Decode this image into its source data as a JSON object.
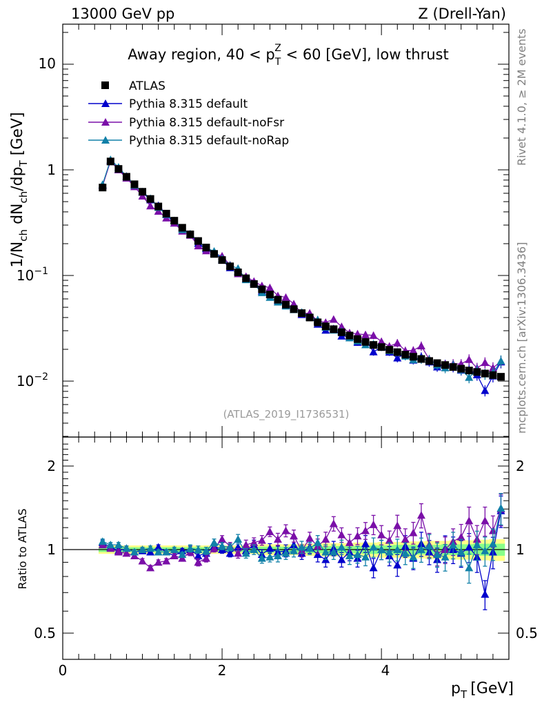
{
  "chart_data": {
    "type": "scatter",
    "header_left": "13000 GeV pp",
    "header_right": "Z (Drell-Yan)",
    "title": "Away region, 40 < p_T^Z < 60 [GeV], low thrust",
    "title_parts": {
      "prefix": "Away region, 40 < p",
      "sup": "Z",
      "sub": "T",
      "suffix": " < 60 [GeV], low thrust"
    },
    "ylabel_main": "1/N_ch dN_ch/dp_T [GeV]",
    "ylabel_ratio": "Ratio to ATLAS",
    "xlabel": "p_T [GeV]",
    "xlabel_parts": {
      "base": "p",
      "sub": "T",
      "unit": "[GeV]"
    },
    "ylabel_parts": {
      "a": "1/N",
      "a_sub": "ch",
      "b": " dN",
      "b_sub": "ch",
      "c": "/dp",
      "c_sub": "T",
      "d": " [GeV]"
    },
    "rivet_label": "Rivet 4.1.0, ≥ 2M events",
    "mcplots_label": "mcplots.cern.ch [arXiv:1306.3436]",
    "analysis_label": "(ATLAS_2019_I1736531)",
    "xlim": [
      0,
      5.6
    ],
    "ylim_main": [
      0.0025,
      25
    ],
    "ylim_ratio": [
      0.4,
      2.5
    ],
    "xticks": [
      0,
      2,
      4
    ],
    "xtick_labels": [
      "0",
      "2",
      "4"
    ],
    "yticks_main": [
      10,
      1,
      0.1,
      0.01
    ],
    "ytick_labels_main": [
      {
        "base": "10",
        "exp": ""
      },
      {
        "base": "1",
        "exp": ""
      },
      {
        "base": "10",
        "exp": "−1"
      },
      {
        "base": "10",
        "exp": "−2"
      }
    ],
    "yticks_ratio": [
      2,
      1,
      0.5
    ],
    "ytick_labels_ratio": [
      "2",
      "1",
      "0.5"
    ],
    "legend": [
      "ATLAS",
      "Pythia 8.315 default",
      "Pythia 8.315 default-noFsr",
      "Pythia 8.315 default-noRap"
    ],
    "colors": {
      "data": "#000000",
      "default": "#0000cc",
      "noFsr": "#7a0fa8",
      "noRap": "#1180a8",
      "band_inner": "#88ff88",
      "band_outer": "#ffff88"
    },
    "x": [
      0.5,
      0.6,
      0.7,
      0.8,
      0.9,
      1.0,
      1.1,
      1.2,
      1.3,
      1.4,
      1.5,
      1.6,
      1.7,
      1.8,
      1.9,
      2.0,
      2.1,
      2.2,
      2.3,
      2.4,
      2.5,
      2.6,
      2.7,
      2.8,
      2.9,
      3.0,
      3.1,
      3.2,
      3.3,
      3.4,
      3.5,
      3.6,
      3.7,
      3.8,
      3.9,
      4.0,
      4.1,
      4.2,
      4.3,
      4.4,
      4.5,
      4.6,
      4.7,
      4.8,
      4.9,
      5.0,
      5.1,
      5.2,
      5.3,
      5.4,
      5.5
    ],
    "series": [
      {
        "name": "ATLAS",
        "values": [
          0.68,
          1.2,
          1.02,
          0.86,
          0.73,
          0.62,
          0.53,
          0.45,
          0.385,
          0.33,
          0.283,
          0.245,
          0.212,
          0.184,
          0.16,
          0.14,
          0.122,
          0.107,
          0.094,
          0.083,
          0.074,
          0.066,
          0.059,
          0.053,
          0.048,
          0.044,
          0.04,
          0.036,
          0.033,
          0.031,
          0.029,
          0.027,
          0.025,
          0.0235,
          0.022,
          0.021,
          0.0198,
          0.0188,
          0.0178,
          0.017,
          0.0162,
          0.0155,
          0.0148,
          0.0142,
          0.0136,
          0.0131,
          0.0126,
          0.0122,
          0.0118,
          0.0114,
          0.011
        ]
      },
      {
        "name": "Pythia 8.315 default",
        "ratio": [
          1.06,
          1.02,
          0.99,
          1.01,
          0.98,
          0.99,
          0.98,
          1.02,
          0.98,
          0.95,
          0.99,
          1.0,
          0.95,
          0.97,
          1.03,
          1.0,
          0.97,
          1.02,
          0.99,
          1.04,
          0.96,
          1.01,
          0.98,
          0.99,
          1.04,
          0.97,
          1.02,
          0.96,
          0.92,
          1.01,
          0.92,
          0.98,
          0.93,
          1.05,
          0.86,
          1.0,
          0.95,
          0.88,
          1.03,
          0.93,
          1.05,
          0.98,
          0.92,
          1.01,
          1.0,
          0.97,
          1.02,
          0.94,
          0.69,
          0.98,
          1.38
        ]
      },
      {
        "name": "Pythia 8.315 default-noFsr",
        "ratio": [
          1.04,
          1.01,
          0.98,
          0.97,
          0.95,
          0.91,
          0.86,
          0.9,
          0.91,
          0.95,
          0.93,
          0.98,
          0.9,
          0.93,
          1.01,
          1.09,
          1.03,
          0.97,
          1.04,
          1.06,
          1.08,
          1.16,
          1.09,
          1.17,
          1.12,
          0.99,
          1.1,
          1.03,
          1.09,
          1.24,
          1.13,
          1.06,
          1.12,
          1.17,
          1.23,
          1.13,
          1.08,
          1.22,
          1.09,
          1.15,
          1.33,
          1.04,
          0.97,
          1.0,
          1.07,
          1.11,
          1.27,
          1.09,
          1.27,
          1.17,
          1.4
        ]
      },
      {
        "name": "Pythia 8.315 default-noRap",
        "ratio": [
          1.07,
          1.04,
          1.04,
          1.01,
          0.98,
          1.0,
          1.01,
          0.98,
          0.98,
          1.0,
          0.96,
          1.01,
          1.0,
          0.99,
          1.06,
          1.03,
          1.02,
          1.09,
          0.97,
          1.0,
          0.93,
          0.94,
          0.95,
          0.97,
          0.99,
          1.02,
          1.01,
          1.06,
          0.98,
          0.98,
          1.02,
          0.95,
          0.96,
          0.94,
          1.02,
          1.0,
          0.98,
          1.0,
          0.97,
          0.94,
          1.0,
          1.03,
          0.96,
          0.94,
          1.04,
          0.98,
          0.86,
          1.04,
          0.99,
          1.05,
          1.41
        ]
      }
    ],
    "band_inner_halfwidth": [
      0.02,
      0.02,
      0.02,
      0.02,
      0.02,
      0.02,
      0.02,
      0.02,
      0.02,
      0.02,
      0.02,
      0.02,
      0.02,
      0.02,
      0.02,
      0.02,
      0.02,
      0.02,
      0.02,
      0.02,
      0.025,
      0.025,
      0.025,
      0.025,
      0.025,
      0.03,
      0.03,
      0.03,
      0.03,
      0.03,
      0.03,
      0.03,
      0.03,
      0.035,
      0.035,
      0.035,
      0.035,
      0.04,
      0.04,
      0.04,
      0.04,
      0.04,
      0.04,
      0.045,
      0.045,
      0.045,
      0.045,
      0.05,
      0.05,
      0.05,
      0.05
    ],
    "band_outer_halfwidth": [
      0.035,
      0.035,
      0.035,
      0.035,
      0.035,
      0.035,
      0.035,
      0.035,
      0.035,
      0.035,
      0.035,
      0.035,
      0.035,
      0.035,
      0.035,
      0.035,
      0.035,
      0.035,
      0.035,
      0.035,
      0.045,
      0.045,
      0.045,
      0.045,
      0.045,
      0.05,
      0.05,
      0.05,
      0.055,
      0.055,
      0.055,
      0.055,
      0.06,
      0.06,
      0.06,
      0.065,
      0.065,
      0.065,
      0.07,
      0.07,
      0.07,
      0.075,
      0.075,
      0.075,
      0.08,
      0.08,
      0.08,
      0.085,
      0.085,
      0.09,
      0.09
    ],
    "mc_error_frac": [
      0.02,
      0.02,
      0.02,
      0.02,
      0.02,
      0.02,
      0.02,
      0.02,
      0.02,
      0.02,
      0.02,
      0.03,
      0.03,
      0.03,
      0.03,
      0.03,
      0.03,
      0.04,
      0.04,
      0.04,
      0.04,
      0.04,
      0.05,
      0.05,
      0.05,
      0.05,
      0.05,
      0.06,
      0.06,
      0.06,
      0.06,
      0.07,
      0.07,
      0.07,
      0.08,
      0.08,
      0.08,
      0.09,
      0.09,
      0.09,
      0.1,
      0.1,
      0.1,
      0.11,
      0.11,
      0.11,
      0.12,
      0.12,
      0.12,
      0.13,
      0.13
    ]
  }
}
